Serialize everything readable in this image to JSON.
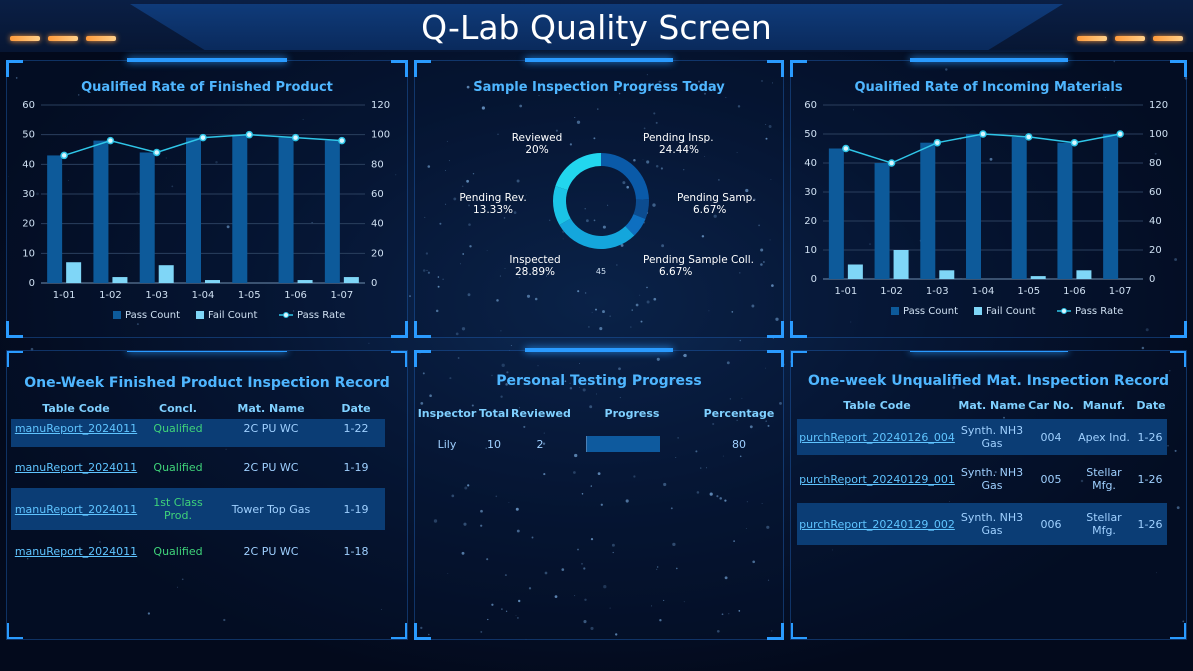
{
  "header": {
    "title": "Q-Lab Quality Screen"
  },
  "finished_rate": {
    "title": "Qualified Rate of Finished Product",
    "legend": [
      "Pass Count",
      "Fail Count",
      "Pass Rate"
    ],
    "chart_data": {
      "type": "bar",
      "categories": [
        "1-01",
        "1-02",
        "1-03",
        "1-04",
        "1-05",
        "1-06",
        "1-07"
      ],
      "series": [
        {
          "name": "Pass Count",
          "values": [
            43,
            48,
            44,
            49,
            50,
            49,
            48
          ]
        },
        {
          "name": "Fail Count",
          "values": [
            7,
            2,
            6,
            1,
            0,
            1,
            2
          ]
        },
        {
          "name": "Pass Rate",
          "values": [
            86,
            96,
            88,
            98,
            100,
            98,
            96
          ]
        }
      ],
      "ylim_left": [
        0,
        60
      ],
      "yticks_left": [
        "0",
        "10",
        "20",
        "30",
        "40",
        "50",
        "60"
      ],
      "ylim_right": [
        0,
        120
      ],
      "yticks_right": [
        "0",
        "20",
        "40",
        "60",
        "80",
        "100",
        "120"
      ]
    }
  },
  "sample_progress": {
    "title": "Sample Inspection Progress Today",
    "center_value": "45",
    "chart_data": {
      "type": "pie",
      "slices": [
        {
          "label": "Pending Insp.",
          "pct": "24.44%",
          "value": 24.44,
          "color": "#0a5aa8"
        },
        {
          "label": "Pending Samp.",
          "pct": "6.67%",
          "value": 6.67,
          "color": "#0c4c90"
        },
        {
          "label": "Pending Sample Coll.",
          "pct": "6.67%",
          "value": 6.67,
          "color": "#0e6fc0"
        },
        {
          "label": "Inspected",
          "pct": "28.89%",
          "value": 28.89,
          "color": "#14a6dc"
        },
        {
          "label": "Pending Rev.",
          "pct": "13.33%",
          "value": 13.33,
          "color": "#1bc4e6"
        },
        {
          "label": "Reviewed",
          "pct": "20%",
          "value": 20,
          "color": "#22d6ee"
        }
      ]
    }
  },
  "incoming_rate": {
    "title": "Qualified Rate of Incoming Materials",
    "legend": [
      "Pass Count",
      "Fail Count",
      "Pass Rate"
    ],
    "chart_data": {
      "type": "bar",
      "categories": [
        "1-01",
        "1-02",
        "1-03",
        "1-04",
        "1-05",
        "1-06",
        "1-07"
      ],
      "series": [
        {
          "name": "Pass Count",
          "values": [
            45,
            40,
            47,
            50,
            49,
            47,
            50
          ]
        },
        {
          "name": "Fail Count",
          "values": [
            5,
            10,
            3,
            0,
            1,
            3,
            0
          ]
        },
        {
          "name": "Pass Rate",
          "values": [
            90,
            80,
            94,
            100,
            98,
            94,
            100
          ]
        }
      ],
      "ylim_left": [
        0,
        60
      ],
      "yticks_left": [
        "0",
        "10",
        "20",
        "30",
        "40",
        "50",
        "60"
      ],
      "ylim_right": [
        0,
        120
      ],
      "yticks_right": [
        "0",
        "20",
        "40",
        "60",
        "80",
        "100",
        "120"
      ]
    }
  },
  "finished_record": {
    "title": "One-Week Finished Product Inspection Record",
    "columns": [
      "Table Code",
      "Concl.",
      "Mat. Name",
      "Date"
    ],
    "partial_row": {
      "code": "manuReport_2024011",
      "concl": "Qualified",
      "mat": "2C PU WC",
      "date": "1-22"
    },
    "rows": [
      {
        "code": "manuReport_2024011",
        "concl": "Qualified",
        "mat": "2C PU WC",
        "date": "1-19"
      },
      {
        "code": "manuReport_2024011",
        "concl": "1st Class Prod.",
        "mat": "Tower Top Gas",
        "date": "1-19"
      },
      {
        "code": "manuReport_2024011",
        "concl": "Qualified",
        "mat": "2C PU WC",
        "date": "1-18"
      }
    ]
  },
  "personal_progress": {
    "title": "Personal Testing Progress",
    "columns": [
      "Inspector",
      "Total",
      "Reviewed",
      "Progress",
      "Percentage"
    ],
    "rows": [
      {
        "inspector": "Lily",
        "total": "10",
        "reviewed": "2",
        "progress": 0.8,
        "percentage": "80"
      }
    ]
  },
  "unqualified_record": {
    "title": "One-week Unqualified Mat. Inspection Record",
    "columns": [
      "Table Code",
      "Mat. Name",
      "Car No.",
      "Manuf.",
      "Date"
    ],
    "rows": [
      {
        "code": "purchReport_20240126_004",
        "mat": "Synth. NH3 Gas",
        "car": "004",
        "manuf": "Apex Ind.",
        "date": "1-26"
      },
      {
        "code": "purchReport_20240129_001",
        "mat": "Synth. NH3 Gas",
        "car": "005",
        "manuf": "Stellar Mfg.",
        "date": "1-26"
      },
      {
        "code": "purchReport_20240129_002",
        "mat": "Synth. NH3 Gas",
        "car": "006",
        "manuf": "Stellar Mfg.",
        "date": "1-26"
      }
    ]
  }
}
